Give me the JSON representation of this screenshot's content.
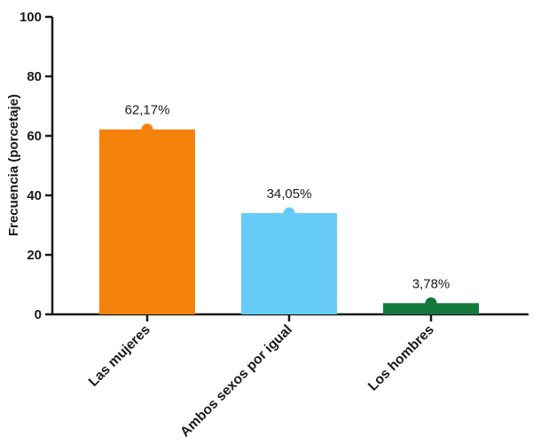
{
  "chart_data": {
    "type": "bar",
    "title": "",
    "xlabel": "",
    "ylabel": "Frecuencia (porcetaje)",
    "ylim": [
      0,
      100
    ],
    "yticks": [
      "0",
      "20",
      "40",
      "60",
      "80",
      "100"
    ],
    "categories": [
      "Las mujeres",
      "Ambos sexos por igual",
      "Los hombres"
    ],
    "values": [
      62.17,
      34.05,
      3.78
    ],
    "data_labels": [
      "62,17%",
      "34,05%",
      "3,78%"
    ],
    "colors": [
      "#f5820d",
      "#66ccf7",
      "#147a3c"
    ],
    "grid": false,
    "legend": "none"
  }
}
